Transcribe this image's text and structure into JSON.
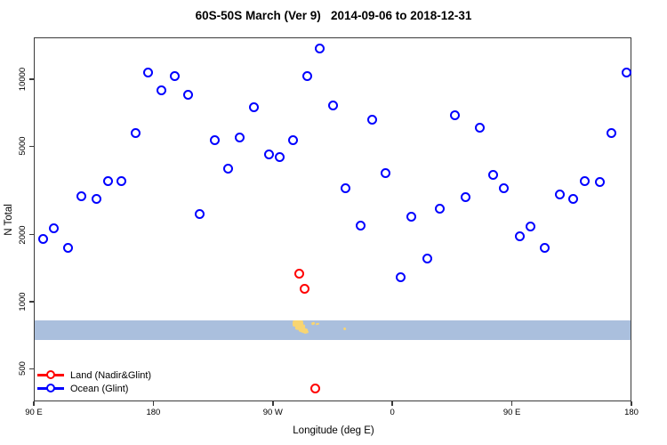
{
  "chart_data": {
    "type": "scatter",
    "title": "60S-50S March (Ver 9)   2014-09-06 to 2018-12-31",
    "xlabel": "Longitude (deg E)",
    "ylabel": "N Total",
    "x_axis": {
      "note": "longitude axis spans 450 deg starting at 90E wrapping eastward; 90E-180 segment repeated at both ends",
      "range_deg_along": [
        90,
        540
      ],
      "grid": false,
      "ticks": [
        {
          "lon": 90,
          "label": "90 E"
        },
        {
          "lon": 180,
          "label": "180"
        },
        {
          "lon": 270,
          "label": "90 W"
        },
        {
          "lon": 360,
          "label": "0"
        },
        {
          "lon": 450,
          "label": "90 E"
        },
        {
          "lon": 540,
          "label": "180"
        }
      ]
    },
    "y_axis": {
      "scale": "log",
      "range": [
        350,
        15500
      ],
      "grid": false,
      "ticks": [
        {
          "value": 500,
          "label": "500"
        },
        {
          "value": 1000,
          "label": "1000"
        },
        {
          "value": 2000,
          "label": "2000"
        },
        {
          "value": 5000,
          "label": "5000"
        },
        {
          "value": 10000,
          "label": "10000"
        }
      ]
    },
    "series": [
      {
        "name": "Land (Nadir&Glint)",
        "color": "#ff0000",
        "points": [
          {
            "lon": 290,
            "n": 1340
          },
          {
            "lon": 294,
            "n": 1140
          },
          {
            "lon": 302,
            "n": 408
          }
        ]
      },
      {
        "name": "Ocean (Glint)",
        "color": "#0000ff",
        "points": [
          {
            "lon": 176,
            "n": 10700
          },
          {
            "lon": 196,
            "n": 10300
          },
          {
            "lon": 186,
            "n": 8950
          },
          {
            "lon": 206,
            "n": 8550
          },
          {
            "lon": 167,
            "n": 5750
          },
          {
            "lon": 226,
            "n": 5300
          },
          {
            "lon": 305,
            "n": 13800
          },
          {
            "lon": 296,
            "n": 10300
          },
          {
            "lon": 256,
            "n": 7450
          },
          {
            "lon": 315,
            "n": 7600
          },
          {
            "lon": 345,
            "n": 6550
          },
          {
            "lon": 245,
            "n": 5450
          },
          {
            "lon": 285,
            "n": 5300
          },
          {
            "lon": 267,
            "n": 4610
          },
          {
            "lon": 275,
            "n": 4450
          },
          {
            "lon": 536,
            "n": 10700
          },
          {
            "lon": 407,
            "n": 6860
          },
          {
            "lon": 426,
            "n": 6080
          },
          {
            "lon": 525,
            "n": 5750
          },
          {
            "lon": 236,
            "n": 3980
          },
          {
            "lon": 146,
            "n": 3470
          },
          {
            "lon": 156,
            "n": 3470
          },
          {
            "lon": 126,
            "n": 2990
          },
          {
            "lon": 137,
            "n": 2910
          },
          {
            "lon": 215,
            "n": 2470
          },
          {
            "lon": 105,
            "n": 2130
          },
          {
            "lon": 97,
            "n": 1920
          },
          {
            "lon": 116,
            "n": 1740
          },
          {
            "lon": 355,
            "n": 3800
          },
          {
            "lon": 325,
            "n": 3250
          },
          {
            "lon": 374,
            "n": 2420
          },
          {
            "lon": 336,
            "n": 2190
          },
          {
            "lon": 386,
            "n": 1560
          },
          {
            "lon": 366,
            "n": 1290
          },
          {
            "lon": 436,
            "n": 3700
          },
          {
            "lon": 444,
            "n": 3250
          },
          {
            "lon": 415,
            "n": 2940
          },
          {
            "lon": 396,
            "n": 2610
          },
          {
            "lon": 505,
            "n": 3470
          },
          {
            "lon": 516,
            "n": 3440
          },
          {
            "lon": 486,
            "n": 3020
          },
          {
            "lon": 496,
            "n": 2910
          },
          {
            "lon": 464,
            "n": 2170
          },
          {
            "lon": 456,
            "n": 1960
          },
          {
            "lon": 475,
            "n": 1740
          }
        ]
      }
    ],
    "band": {
      "description": "60S-50S latitude strip map: ocean blue with yellow land (Patagonia, Falklands, South Georgia)",
      "ocean_color": "#aabfdd",
      "land_color": "#f8d572",
      "top_n": 825,
      "bottom_n": 675,
      "land_patches": [
        {
          "x": 329,
          "y": 360,
          "w": 12,
          "h": 7,
          "rot": 0
        },
        {
          "x": 332,
          "y": 364,
          "w": 11,
          "h": 7,
          "rot": 8
        },
        {
          "x": 336,
          "y": 368,
          "w": 10,
          "h": 6,
          "rot": 20
        },
        {
          "x": 342,
          "y": 371,
          "w": 5,
          "h": 3,
          "rot": 25
        },
        {
          "x": 350,
          "y": 362,
          "w": 4,
          "h": 2.5,
          "rot": -20
        },
        {
          "x": 355,
          "y": 363,
          "w": 4,
          "h": 2,
          "rot": -15
        },
        {
          "x": 386,
          "y": 368,
          "w": 3,
          "h": 2.5,
          "rot": -30
        }
      ]
    }
  },
  "legend": {
    "items": [
      {
        "label": "Land (Nadir&Glint)",
        "color": "#ff0000"
      },
      {
        "label": "Ocean (Glint)",
        "color": "#0000ff"
      }
    ]
  }
}
